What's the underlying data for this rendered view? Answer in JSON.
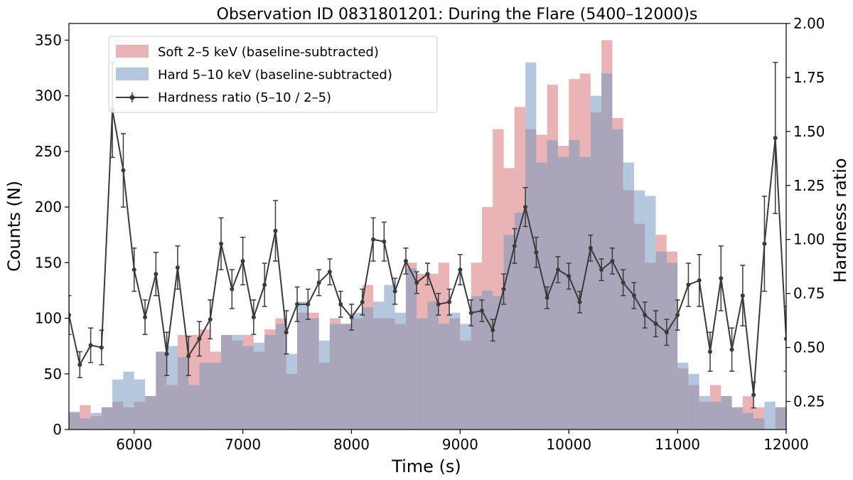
{
  "chart_data": {
    "type": "bar",
    "title": "Observation ID 0831801201: During the Flare (5400–12000)s",
    "xlabel": "Time (s)",
    "ylabel": "Counts (N)",
    "ylabel_right": "Hardness ratio",
    "xlim": [
      5400,
      12000
    ],
    "ylim": [
      0,
      365
    ],
    "ylim_right": [
      0.12,
      2.0
    ],
    "xticks": [
      6000,
      7000,
      8000,
      9000,
      10000,
      11000,
      12000
    ],
    "yticks": [
      0,
      50,
      100,
      150,
      200,
      250,
      300,
      350
    ],
    "yticks_right": [
      0.25,
      0.5,
      0.75,
      1.0,
      1.25,
      1.5,
      1.75,
      2.0
    ],
    "yticks_right_labels": [
      "0.25",
      "0.50",
      "0.75",
      "1.00",
      "1.25",
      "1.50",
      "1.75",
      "2.00"
    ],
    "legend_position": "top-left",
    "bin_width": 100,
    "bin_starts": [
      5400,
      5500,
      5600,
      5700,
      5800,
      5900,
      6000,
      6100,
      6200,
      6300,
      6400,
      6500,
      6600,
      6700,
      6800,
      6900,
      7000,
      7100,
      7200,
      7300,
      7400,
      7500,
      7600,
      7700,
      7800,
      7900,
      8000,
      8100,
      8200,
      8300,
      8400,
      8500,
      8600,
      8700,
      8800,
      8900,
      9000,
      9100,
      9200,
      9300,
      9400,
      9500,
      9600,
      9700,
      9800,
      9900,
      10000,
      10100,
      10200,
      10300,
      10400,
      10500,
      10600,
      10700,
      10800,
      10900,
      11000,
      11100,
      11200,
      11300,
      11400,
      11500,
      11600,
      11700,
      11800,
      11900
    ],
    "series": [
      {
        "name": "Soft 2–5 keV (baseline-subtracted)",
        "kind": "histogram",
        "color": "#d9777a",
        "values": [
          15,
          22,
          12,
          20,
          25,
          20,
          25,
          30,
          70,
          40,
          85,
          85,
          90,
          70,
          85,
          80,
          85,
          70,
          90,
          100,
          50,
          105,
          105,
          60,
          100,
          95,
          100,
          130,
          100,
          100,
          95,
          150,
          140,
          140,
          150,
          100,
          80,
          150,
          200,
          270,
          235,
          290,
          270,
          265,
          310,
          255,
          315,
          320,
          285,
          350,
          280,
          215,
          185,
          150,
          175,
          160,
          55,
          40,
          25,
          40,
          30,
          20,
          30,
          20,
          0,
          20
        ]
      },
      {
        "name": "Hard 5–10 keV (baseline-subtracted)",
        "kind": "histogram",
        "color": "#7799c0",
        "values": [
          16,
          10,
          15,
          20,
          45,
          52,
          45,
          30,
          70,
          75,
          65,
          40,
          60,
          60,
          85,
          85,
          75,
          78,
          85,
          95,
          68,
          115,
          100,
          80,
          95,
          95,
          105,
          110,
          115,
          130,
          105,
          145,
          100,
          115,
          95,
          105,
          95,
          120,
          125,
          120,
          175,
          195,
          330,
          240,
          260,
          245,
          260,
          245,
          300,
          320,
          270,
          240,
          215,
          210,
          160,
          150,
          60,
          50,
          30,
          25,
          30,
          20,
          15,
          10,
          25,
          20
        ]
      },
      {
        "name": "Hardness ratio (5–10 / 2–5)",
        "kind": "line",
        "axis": "right",
        "color": "#3a3a3a",
        "x": [
          5400,
          5500,
          5600,
          5700,
          5800,
          5900,
          6000,
          6100,
          6200,
          6300,
          6400,
          6500,
          6600,
          6700,
          6800,
          6900,
          7000,
          7100,
          7200,
          7300,
          7400,
          7500,
          7600,
          7700,
          7800,
          7900,
          8000,
          8100,
          8200,
          8300,
          8400,
          8500,
          8600,
          8700,
          8800,
          8900,
          9000,
          9100,
          9200,
          9300,
          9400,
          9500,
          9600,
          9700,
          9800,
          9900,
          10000,
          10100,
          10200,
          10300,
          10400,
          10500,
          10600,
          10700,
          10800,
          10900,
          11000,
          11100,
          11200,
          11300,
          11400,
          11500,
          11600,
          11700,
          11800,
          11900,
          12000
        ],
        "y": [
          0.65,
          0.42,
          0.51,
          0.5,
          1.6,
          1.32,
          0.86,
          0.64,
          0.84,
          0.47,
          0.87,
          0.46,
          0.54,
          0.63,
          0.98,
          0.77,
          0.9,
          0.64,
          0.79,
          1.04,
          0.57,
          0.7,
          0.7,
          0.8,
          0.85,
          0.7,
          0.64,
          0.71,
          1.0,
          0.99,
          0.76,
          0.9,
          0.8,
          0.84,
          0.7,
          0.71,
          0.86,
          0.66,
          0.67,
          0.58,
          0.77,
          0.97,
          1.15,
          0.94,
          0.73,
          0.86,
          0.83,
          0.71,
          0.96,
          0.86,
          0.9,
          0.8,
          0.74,
          0.65,
          0.61,
          0.57,
          0.65,
          0.79,
          0.81,
          0.48,
          0.82,
          0.49,
          0.74,
          0.28,
          0.98,
          1.47,
          0.54
        ],
        "errors": [
          0.09,
          0.06,
          0.08,
          0.08,
          0.22,
          0.17,
          0.1,
          0.08,
          0.1,
          0.1,
          0.1,
          0.09,
          0.08,
          0.09,
          0.12,
          0.09,
          0.11,
          0.08,
          0.1,
          0.14,
          0.1,
          0.08,
          0.07,
          0.06,
          0.06,
          0.06,
          0.06,
          0.06,
          0.1,
          0.09,
          0.06,
          0.06,
          0.05,
          0.05,
          0.05,
          0.06,
          0.07,
          0.06,
          0.05,
          0.05,
          0.07,
          0.08,
          0.09,
          0.07,
          0.05,
          0.06,
          0.06,
          0.05,
          0.06,
          0.05,
          0.06,
          0.06,
          0.06,
          0.06,
          0.06,
          0.06,
          0.07,
          0.1,
          0.12,
          0.09,
          0.15,
          0.1,
          0.14,
          0.06,
          0.22,
          0.35,
          0.15
        ]
      }
    ]
  }
}
